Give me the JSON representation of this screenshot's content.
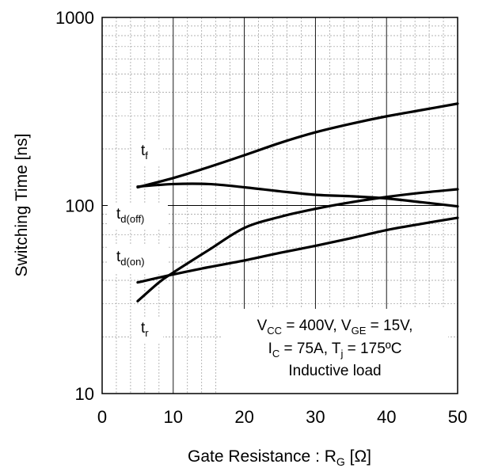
{
  "chart_data": {
    "type": "line",
    "xlabel": "Gate Resistance : R",
    "xlabel_sub": "G",
    "xlabel_unit": " [Ω]",
    "ylabel": "Switching Time [ns]",
    "xlim": [
      0,
      50
    ],
    "ylim": [
      10,
      1000
    ],
    "yscale": "log",
    "x_ticks": [
      "0",
      "10",
      "20",
      "30",
      "40",
      "50"
    ],
    "y_ticks": [
      {
        "value": 10,
        "label": "10"
      },
      {
        "value": 100,
        "label": "100"
      },
      {
        "value": 1000,
        "label": "1000"
      }
    ],
    "grid": true,
    "series": [
      {
        "name": "t",
        "sub": "f",
        "x": [
          5,
          10,
          15,
          20,
          25,
          30,
          35,
          40,
          45,
          50
        ],
        "y": [
          125,
          140,
          160,
          185,
          215,
          245,
          272,
          298,
          322,
          348
        ]
      },
      {
        "name": "t",
        "sub": "d(off)",
        "x": [
          5,
          10,
          15,
          20,
          25,
          30,
          35,
          40,
          45,
          50
        ],
        "y": [
          126,
          130,
          130,
          125,
          119,
          114,
          112,
          109,
          104,
          99
        ]
      },
      {
        "name": "t",
        "sub": "d(on)",
        "x": [
          5,
          10,
          15,
          20,
          25,
          30,
          35,
          40,
          45,
          50
        ],
        "y": [
          39,
          43,
          47,
          51,
          56,
          61,
          67,
          74,
          80,
          86
        ]
      },
      {
        "name": "t",
        "sub": "r",
        "x": [
          5,
          8,
          10,
          15,
          20,
          25,
          30,
          35,
          40,
          45,
          50
        ],
        "y": [
          31,
          39,
          44,
          58,
          76,
          87,
          96,
          104,
          111,
          117,
          122
        ]
      }
    ],
    "annotation": {
      "line1": [
        {
          "t": "V"
        },
        {
          "t": "CC",
          "sub": true
        },
        {
          "t": " = 400V, V"
        },
        {
          "t": "GE",
          "sub": true
        },
        {
          "t": " = 15V,"
        }
      ],
      "line2": [
        {
          "t": "I"
        },
        {
          "t": "C",
          "sub": true
        },
        {
          "t": " = 75A, T"
        },
        {
          "t": "j",
          "sub": true
        },
        {
          "t": " = 175ºC"
        }
      ],
      "line3": [
        {
          "t": "Inductive load"
        }
      ]
    }
  }
}
